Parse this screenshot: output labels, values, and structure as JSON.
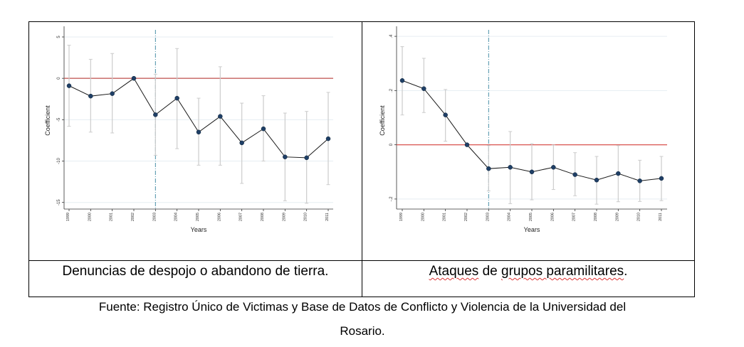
{
  "chart_data": [
    {
      "type": "line",
      "xlabel": "Years",
      "ylabel": "Coefficient",
      "x": [
        1999,
        2000,
        2001,
        2002,
        2003,
        2004,
        2005,
        2006,
        2007,
        2008,
        2009,
        2010,
        2011
      ],
      "xtick_labels": [
        "1999",
        "2000",
        "2001",
        "2002",
        "2003",
        "2004",
        "2005",
        "2006",
        "2007",
        "2008",
        "2009",
        "2010",
        "2011"
      ],
      "yticks": [
        5,
        0,
        -5,
        -10,
        -15
      ],
      "ytick_labels": [
        "5",
        "0",
        "-5",
        "-10",
        "-15"
      ],
      "ylim": [
        -15.8,
        5.6
      ],
      "values": [
        -0.9,
        -2.15,
        -1.85,
        0,
        -4.4,
        -2.4,
        -6.5,
        -4.6,
        -7.8,
        -6.1,
        -9.5,
        -9.6,
        -7.3
      ],
      "ci_upper": [
        4.0,
        2.3,
        3.0,
        0,
        0.5,
        3.6,
        -2.4,
        1.4,
        -3.0,
        -2.1,
        -4.2,
        -4.0,
        -1.7
      ],
      "ci_lower": [
        -5.8,
        -6.5,
        -6.6,
        0,
        -9.3,
        -8.5,
        -10.5,
        -10.5,
        -12.7,
        -10.0,
        -14.8,
        -15.1,
        -12.85
      ],
      "reference_line_y": 0,
      "vertical_line_x": 2003,
      "grid": true,
      "colors": {
        "line": "#1a1a1a",
        "marker": "#1f3f66",
        "ci": "#cccccc",
        "reference": "#c0504d",
        "vline": "#4a90a8",
        "grid": "#e6eef2"
      }
    },
    {
      "type": "line",
      "xlabel": "Years",
      "ylabel": "Coefficient",
      "x": [
        1999,
        2000,
        2001,
        2002,
        2003,
        2004,
        2005,
        2006,
        2007,
        2008,
        2009,
        2010,
        2011
      ],
      "xtick_labels": [
        "1999",
        "2000",
        "2001",
        "2002",
        "2003",
        "2004",
        "2005",
        "2006",
        "2007",
        "2008",
        "2009",
        "2010",
        "2011"
      ],
      "yticks": [
        0.4,
        0.2,
        0,
        -0.2
      ],
      "ytick_labels": [
        ".4",
        ".2",
        "0",
        "-.2"
      ],
      "ylim": [
        -0.237,
        0.416
      ],
      "values": [
        0.237,
        0.207,
        0.11,
        0,
        -0.088,
        -0.083,
        -0.1,
        -0.083,
        -0.11,
        -0.13,
        -0.106,
        -0.133,
        -0.124
      ],
      "ci_upper": [
        0.362,
        0.319,
        0.204,
        0,
        -0.003,
        0.049,
        0.004,
        -0.001,
        -0.029,
        -0.043,
        -0.003,
        -0.057,
        -0.043
      ],
      "ci_lower": [
        0.11,
        0.119,
        0.013,
        0,
        -0.17,
        -0.217,
        -0.203,
        -0.165,
        -0.188,
        -0.219,
        -0.21,
        -0.209,
        -0.206
      ],
      "reference_line_y": 0,
      "vertical_line_x": 2003,
      "grid": true,
      "colors": {
        "line": "#1a1a1a",
        "marker": "#1f3f66",
        "ci": "#cccccc",
        "reference": "#d9534f",
        "vline": "#4a90a8",
        "grid": "#e6eef2"
      }
    }
  ],
  "captions": {
    "left": "Denuncias de despojo o abandono de tierra.",
    "right_a": "Ataques",
    "right_b": " de ",
    "right_c": "grupos paramilitares",
    "right_d": "."
  },
  "source": {
    "line1": "Fuente: Registro Único de Victimas y Base de Datos de Conflicto y Violencia de la Universidad del",
    "line2": "Rosario."
  }
}
